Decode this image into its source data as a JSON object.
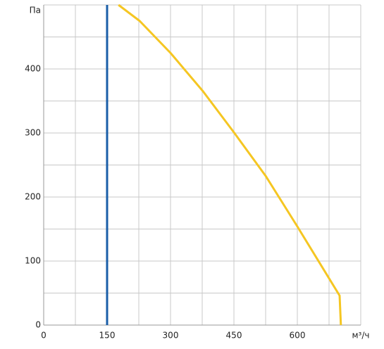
{
  "chart_data": {
    "type": "line",
    "x_label": "м³/ч",
    "y_label": "Па",
    "xlim": [
      0,
      750
    ],
    "ylim": [
      0,
      500
    ],
    "xticks": [
      0,
      150,
      300,
      450,
      600
    ],
    "yticks": [
      0,
      100,
      200,
      300,
      400
    ],
    "x_grid": [
      75,
      150,
      225,
      300,
      375,
      450,
      525,
      600,
      675,
      750
    ],
    "y_grid": [
      50,
      100,
      150,
      200,
      250,
      300,
      350,
      400,
      450,
      500
    ],
    "grid": true,
    "series": [
      {
        "color": "#1a5ea8",
        "x": [
          150,
          150
        ],
        "values": [
          0,
          500
        ]
      },
      {
        "color": "#f5c622",
        "x": [
          177,
          227,
          300,
          377,
          450,
          525,
          600,
          700,
          703
        ],
        "values": [
          500,
          475,
          425,
          365,
          301,
          233,
          154,
          46,
          0
        ]
      }
    ]
  }
}
